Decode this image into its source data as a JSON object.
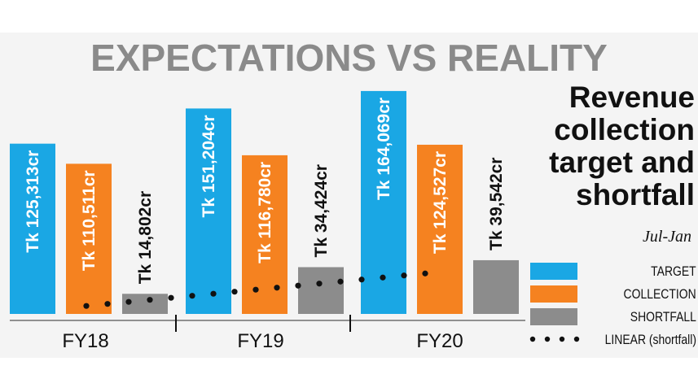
{
  "title": "EXPECTATIONS VS REALITY",
  "side_title": [
    "Revenue",
    "collection",
    "target and",
    "shortfall"
  ],
  "subtitle": "Jul-Jan",
  "colors": {
    "target": "#1aa7e4",
    "collection": "#f58220",
    "shortfall": "#8c8c8c",
    "trend": "#111111",
    "frame": "#f4f4f4",
    "title": "#8a8a8a"
  },
  "legend": {
    "target": "TARGET",
    "collection": "COLLECTION",
    "shortfall": "SHORTFALL",
    "linear": "LINEAR (shortfall)"
  },
  "chart_data": {
    "type": "bar",
    "categories": [
      "FY18",
      "FY19",
      "FY20"
    ],
    "series": [
      {
        "name": "TARGET",
        "values": [
          125313,
          151204,
          164069
        ],
        "labels": [
          "Tk 125,313cr",
          "Tk 151,204cr",
          "Tk 164,069cr"
        ]
      },
      {
        "name": "COLLECTION",
        "values": [
          110511,
          116780,
          124527
        ],
        "labels": [
          "Tk 110,511cr",
          "Tk 116,780cr",
          "Tk 124,527cr"
        ]
      },
      {
        "name": "SHORTFALL",
        "values": [
          14802,
          34424,
          39542
        ],
        "labels": [
          "Tk 14,802cr",
          "Tk 34,424cr",
          "Tk 39,542cr"
        ]
      }
    ],
    "trendline": {
      "name": "LINEAR (shortfall)",
      "style": "dotted"
    },
    "ylim": [
      0,
      170000
    ],
    "grid": false,
    "legend_position": "right"
  }
}
